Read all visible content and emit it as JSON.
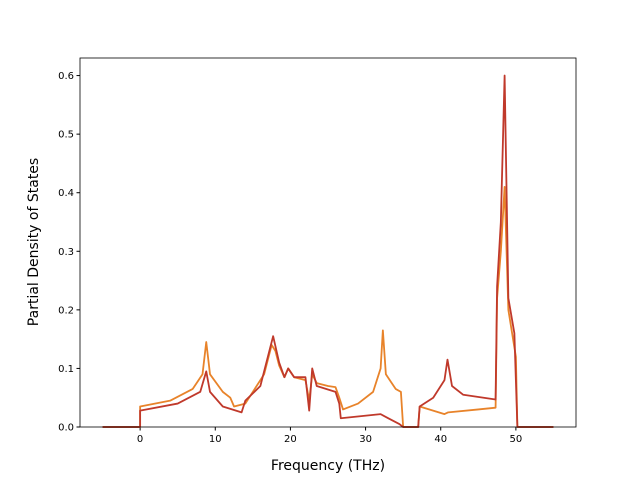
{
  "chart_data": {
    "type": "line",
    "xlabel": "Frequency (THz)",
    "ylabel": "Partial Density of States",
    "xlim": [
      -8,
      58
    ],
    "ylim": [
      0,
      0.63
    ],
    "xticks": [
      0,
      10,
      20,
      30,
      40,
      50
    ],
    "yticks": [
      {
        "value": 0,
        "label": "0.0"
      },
      {
        "value": 0.1,
        "label": "0.1"
      },
      {
        "value": 0.2,
        "label": "0.2"
      },
      {
        "value": 0.3,
        "label": "0.3"
      },
      {
        "value": 0.4,
        "label": "0.4"
      },
      {
        "value": 0.5,
        "label": "0.5"
      },
      {
        "value": 0.6,
        "label": "0.6"
      }
    ],
    "grid": false,
    "series": [
      {
        "color": "#e8832a",
        "x": [
          -5,
          0,
          0,
          4,
          7,
          8.3,
          8.8,
          9.3,
          11,
          12,
          12.5,
          14,
          15,
          16.5,
          17.5,
          18,
          18.5,
          19.2,
          19.7,
          20.5,
          22,
          22.5,
          22.9,
          23.5,
          25,
          26,
          26.5,
          27,
          29,
          31,
          32,
          32.3,
          32.7,
          34,
          34.7,
          35,
          37,
          37.2,
          40.5,
          41,
          45,
          47.3,
          47.5,
          48,
          48.5,
          49,
          50,
          50.2,
          55
        ],
        "values": [
          0,
          0,
          0.035,
          0.045,
          0.065,
          0.09,
          0.145,
          0.09,
          0.06,
          0.05,
          0.035,
          0.04,
          0.06,
          0.09,
          0.14,
          0.13,
          0.105,
          0.085,
          0.1,
          0.085,
          0.08,
          0.045,
          0.09,
          0.075,
          0.07,
          0.068,
          0.05,
          0.03,
          0.04,
          0.06,
          0.1,
          0.165,
          0.09,
          0.065,
          0.06,
          0,
          0,
          0.035,
          0.022,
          0.025,
          0.03,
          0.033,
          0.22,
          0.3,
          0.41,
          0.2,
          0.12,
          0,
          0
        ]
      },
      {
        "color": "#c0392b",
        "x": [
          -5,
          0,
          0,
          5,
          8,
          8.8,
          9.3,
          11,
          13.5,
          14,
          16,
          17,
          17.7,
          18.5,
          19.2,
          19.7,
          20.5,
          22,
          22.5,
          22.9,
          23.5,
          26,
          26.5,
          26.7,
          32,
          33,
          34.5,
          35,
          37,
          37.2,
          39,
          40.5,
          40.9,
          41.5,
          43,
          47.3,
          47.5,
          48,
          48.5,
          49,
          49.8,
          50.2,
          55
        ],
        "values": [
          0,
          0,
          0.028,
          0.04,
          0.06,
          0.095,
          0.06,
          0.035,
          0.025,
          0.045,
          0.07,
          0.12,
          0.155,
          0.11,
          0.085,
          0.1,
          0.085,
          0.085,
          0.028,
          0.1,
          0.07,
          0.06,
          0.04,
          0.015,
          0.022,
          0.015,
          0.005,
          0,
          0,
          0.035,
          0.05,
          0.08,
          0.115,
          0.07,
          0.055,
          0.047,
          0.24,
          0.35,
          0.6,
          0.22,
          0.16,
          0,
          0
        ]
      }
    ]
  }
}
